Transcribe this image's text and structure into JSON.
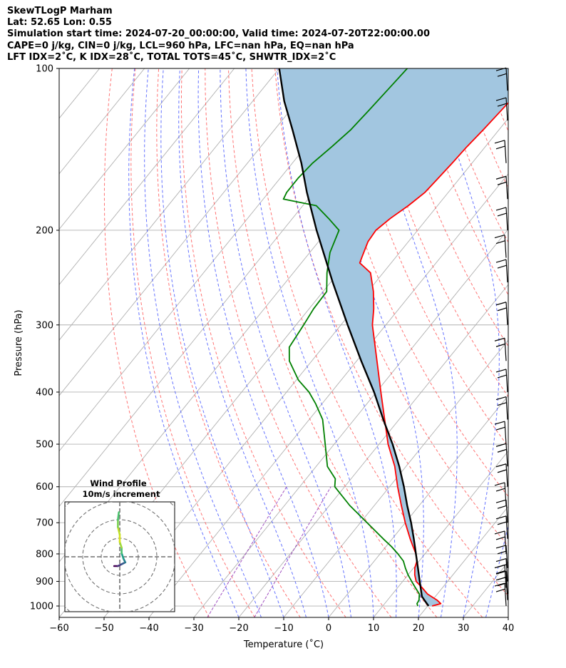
{
  "header": {
    "line1": "SkewTLogP Marham",
    "line2": "Lat: 52.65   Lon: 0.55",
    "line3": "Simulation start time: 2024-07-20_00:00:00, Valid time: 2024-07-20T22:00:00.00",
    "line4": "CAPE=0 j/kg, CIN=0 j/kg, LCL=960 hPa, LFC=nan hPa, EQ=nan hPa",
    "line5": "LFT IDX=2˚C, K IDX=28˚C, TOTAL TOTS=45˚C, SHWTR_IDX=2˚C"
  },
  "chart_data": {
    "type": "line",
    "subtype": "skew-t log-p",
    "xlabel": "Temperature (˚C)",
    "ylabel": "Pressure (hPa)",
    "xlim": [
      -60,
      40
    ],
    "ylim": [
      1050,
      100
    ],
    "yscale": "log",
    "xticks": [
      -60,
      -50,
      -40,
      -30,
      -20,
      -10,
      0,
      10,
      20,
      30,
      40
    ],
    "yticks": [
      1000,
      900,
      800,
      700,
      600,
      500,
      400,
      300,
      200,
      100
    ],
    "grid": true,
    "series": [
      {
        "role": "temperature",
        "color": "#ff0000",
        "pressure": [
          1000,
          990,
          975,
          950,
          925,
          900,
          875,
          850,
          825,
          800,
          775,
          750,
          700,
          650,
          600,
          550,
          500,
          450,
          400,
          350,
          300,
          280,
          260,
          240,
          230,
          225,
          210,
          200,
          190,
          180,
          170,
          160,
          150,
          140,
          130,
          120,
          110,
          100
        ],
        "values": [
          21,
          22.5,
          21,
          17.8,
          15.5,
          13,
          11.5,
          10.3,
          9.5,
          8,
          6,
          4,
          0,
          -4,
          -8.2,
          -12.5,
          -18,
          -23.2,
          -29,
          -35.5,
          -43,
          -45.6,
          -48.8,
          -52.8,
          -57,
          -57.5,
          -59,
          -59.3,
          -58.2,
          -56.5,
          -55.2,
          -54.8,
          -54.4,
          -54.1,
          -53.5,
          -53,
          -52.5,
          -52.5
        ]
      },
      {
        "role": "dewpoint",
        "color": "#008000",
        "pressure": [
          1000,
          990,
          975,
          950,
          925,
          900,
          875,
          850,
          825,
          800,
          775,
          750,
          700,
          650,
          600,
          580,
          550,
          500,
          450,
          420,
          400,
          380,
          350,
          330,
          300,
          280,
          260,
          240,
          220,
          200,
          190,
          180,
          175,
          170,
          160,
          150,
          140,
          130,
          120,
          110,
          100
        ],
        "values": [
          17.8,
          17.2,
          17,
          16,
          14,
          12,
          10,
          8.2,
          6.5,
          4,
          1.2,
          -2,
          -8.5,
          -15.5,
          -22.2,
          -23.5,
          -27.5,
          -32,
          -37,
          -41.5,
          -45,
          -49.5,
          -55,
          -57.5,
          -58.3,
          -59,
          -59.2,
          -62.5,
          -65.5,
          -67.5,
          -72,
          -77,
          -85.5,
          -86,
          -86,
          -85.5,
          -84.2,
          -83,
          -82.5,
          -82,
          -81.5
        ]
      },
      {
        "role": "parcel",
        "color": "#000000",
        "pressure": [
          1000,
          975,
          960,
          900,
          850,
          800,
          750,
          700,
          650,
          600,
          550,
          500,
          450,
          400,
          350,
          300,
          250,
          200,
          170,
          150,
          130,
          115,
          100
        ],
        "values": [
          20.2,
          18.2,
          17,
          13.8,
          11,
          8,
          4.8,
          1.3,
          -2.7,
          -6.8,
          -11.5,
          -17,
          -23.5,
          -30.5,
          -39,
          -48.5,
          -59.5,
          -72.5,
          -81.5,
          -88,
          -96,
          -103,
          -110
        ]
      }
    ],
    "shading": {
      "region": "between temperature and parcel",
      "color": "#a2c6e0"
    },
    "wind_barbs": {
      "pressure": [
        1000,
        975,
        950,
        925,
        900,
        850,
        800,
        750,
        700,
        650,
        600,
        550,
        500,
        450,
        400,
        350,
        300,
        250,
        225,
        200,
        175,
        150,
        125,
        110
      ]
    },
    "inset": {
      "title": "Wind Profile",
      "subtitle": "10m/s increment",
      "type": "hodograph",
      "rings": [
        10,
        20,
        30,
        40
      ],
      "hodograph_u": [
        -3,
        -1,
        1,
        3,
        2,
        1,
        1,
        0,
        0,
        -1,
        -1,
        -0.5
      ],
      "hodograph_v": [
        -5,
        -5,
        -4,
        -3,
        -1,
        2,
        5,
        8,
        12,
        16,
        20,
        24
      ]
    }
  }
}
